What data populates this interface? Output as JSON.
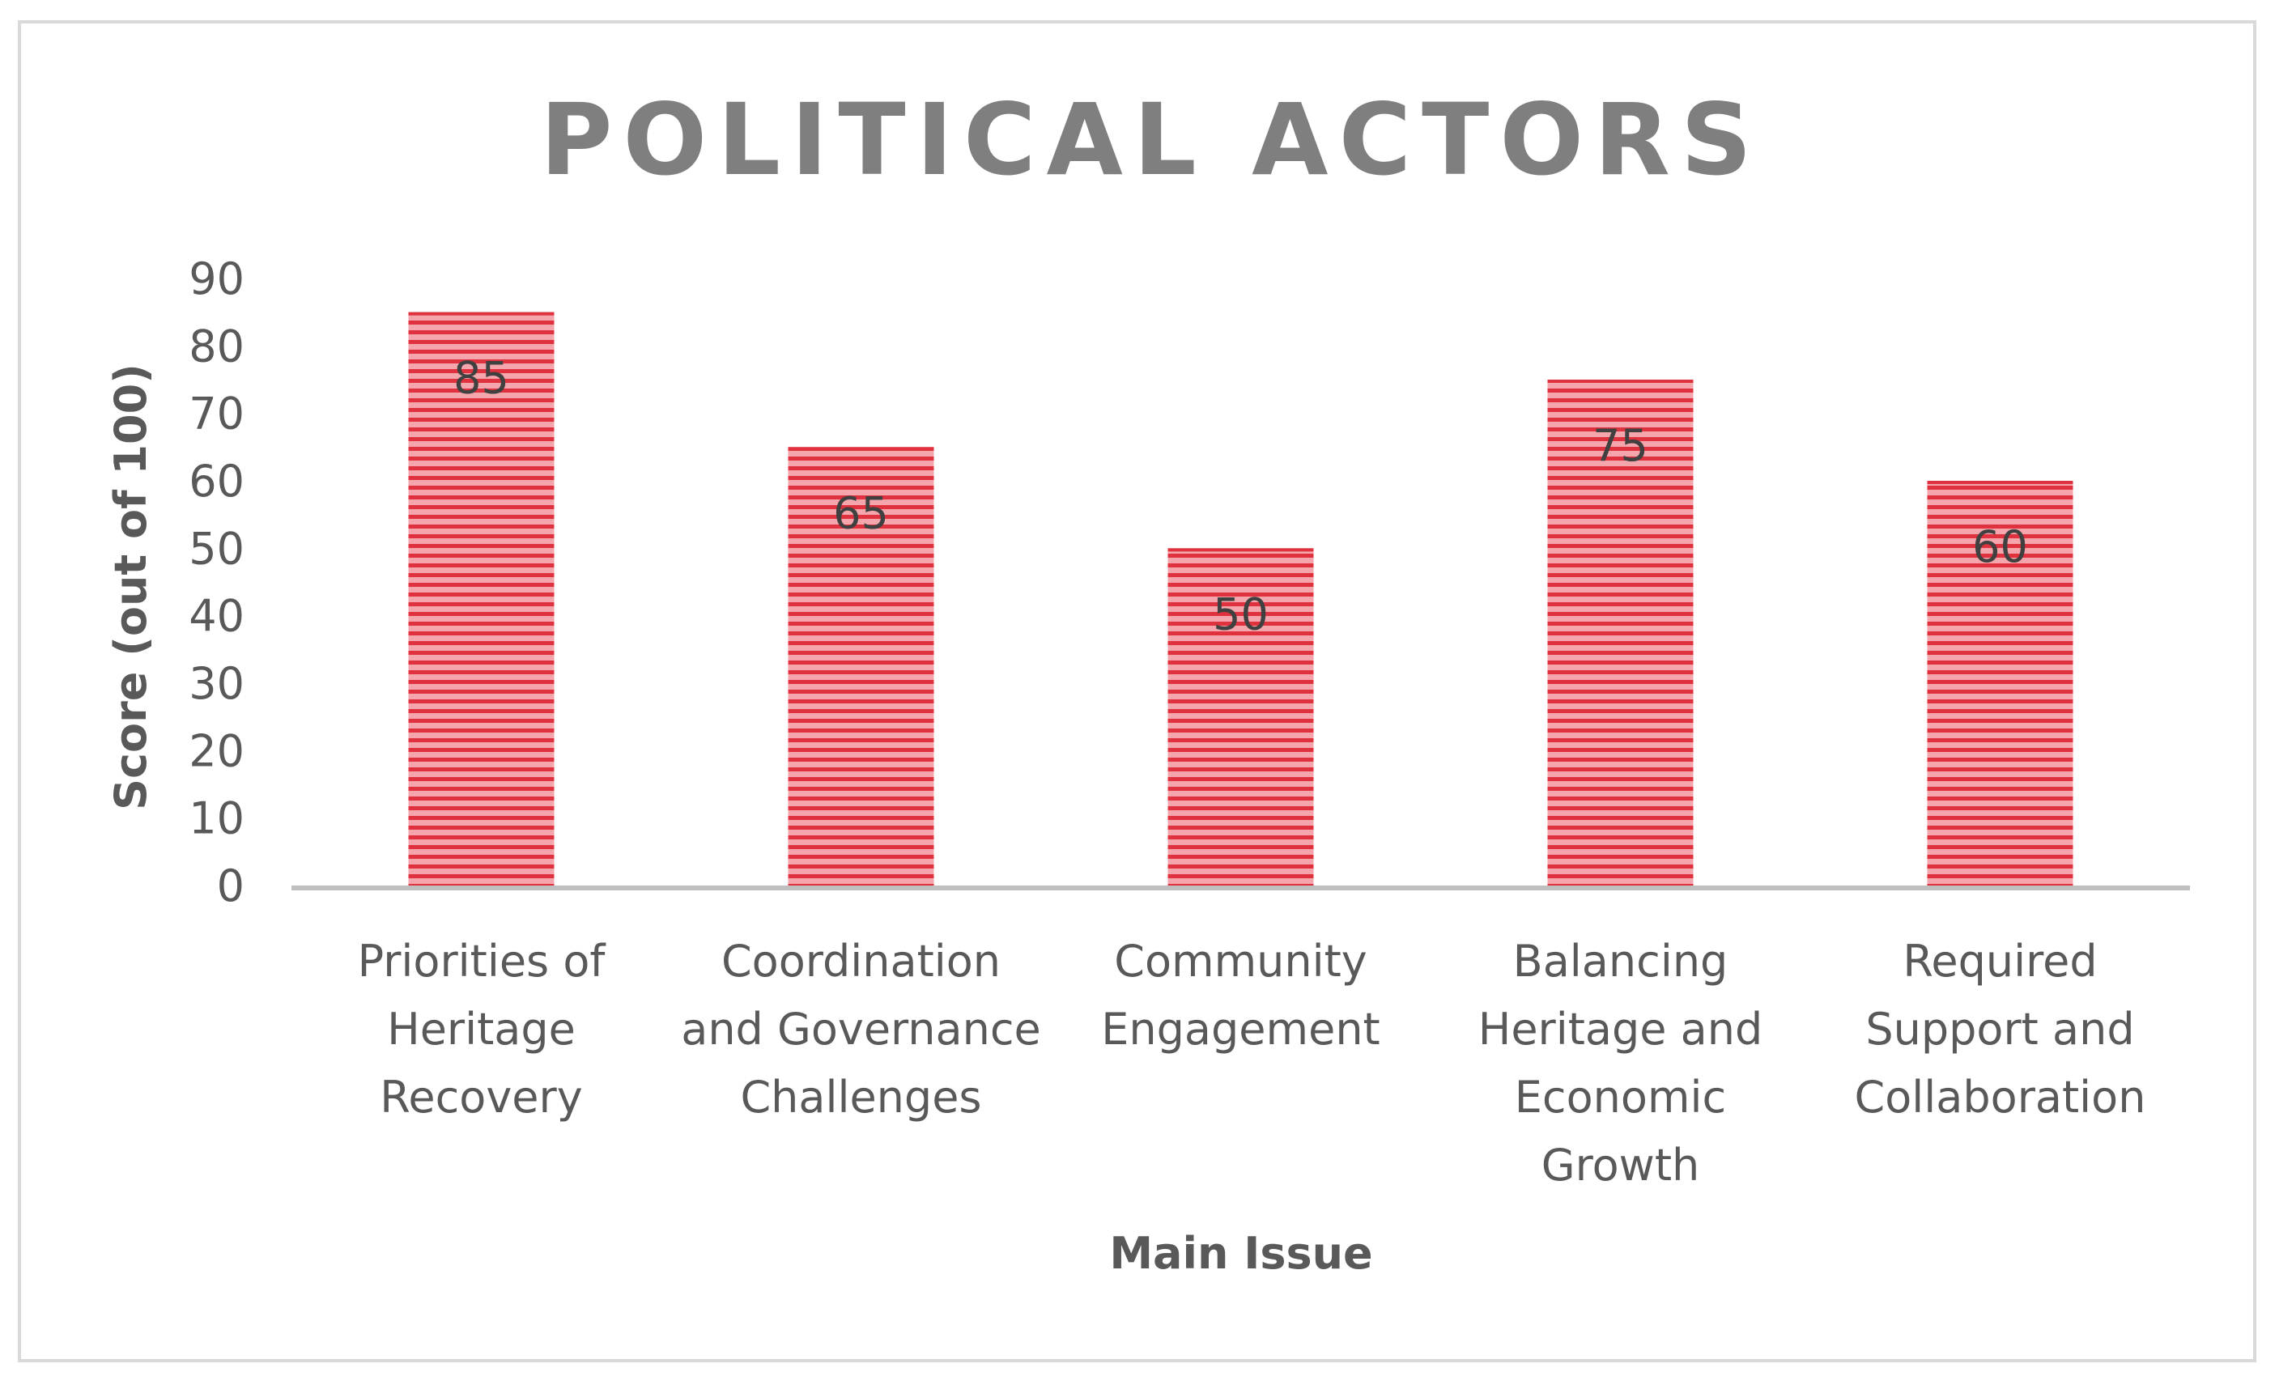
{
  "chart_data": {
    "type": "bar",
    "title": "POLITICAL ACTORS",
    "xlabel": "Main Issue",
    "ylabel": "Score (out of 100)",
    "ylim": [
      0,
      90
    ],
    "yticks": [
      0,
      10,
      20,
      30,
      40,
      50,
      60,
      70,
      80,
      90
    ],
    "categories": [
      [
        "Priorities of",
        "Heritage",
        "Recovery"
      ],
      [
        "Coordination",
        "and Governance",
        "Challenges"
      ],
      [
        "Community",
        "Engagement"
      ],
      [
        "Balancing",
        "Heritage and",
        "Economic",
        "Growth"
      ],
      [
        "Required",
        "Support and",
        "Collaboration"
      ]
    ],
    "values": [
      85,
      65,
      50,
      75,
      60
    ],
    "data_labels": [
      "85",
      "65",
      "50",
      "75",
      "60"
    ],
    "grid": false,
    "legend": "none",
    "colors": {
      "bar_fill": "#f4a6ac",
      "bar_stripe": "#e0323e",
      "axis_line": "#bfbfbf",
      "frame_border": "#d9d9d9",
      "title_text": "#7f7f7f",
      "label_text": "#595959"
    }
  }
}
